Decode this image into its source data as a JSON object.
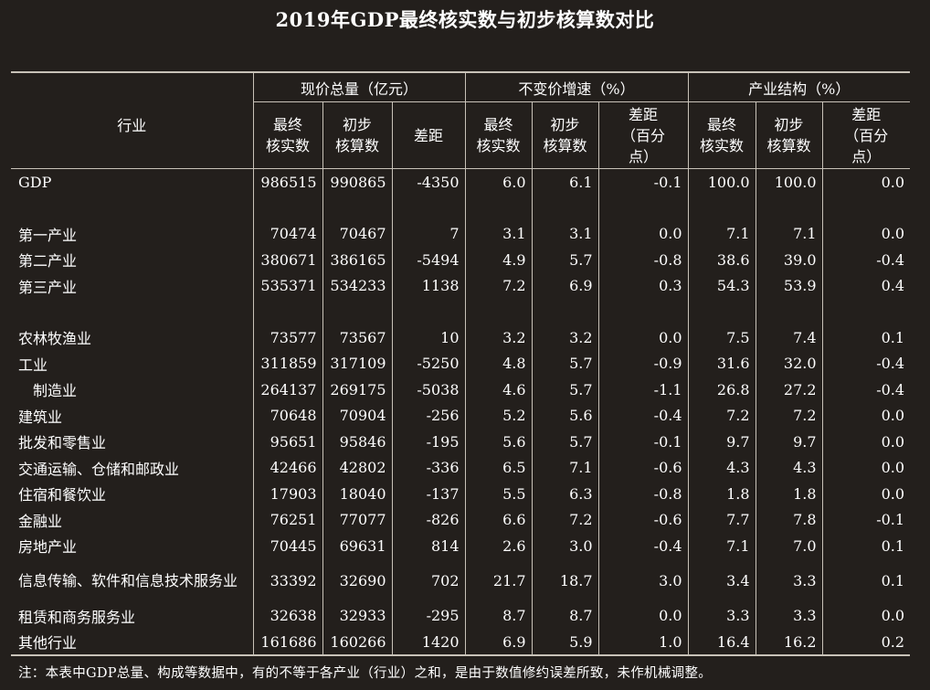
{
  "title": "2019年GDP最终核实数与初步核算数对比",
  "header": {
    "industry": "行业",
    "groups": [
      "现价总量（亿元）",
      "不变价增速（%）",
      "产业结构（%）"
    ],
    "sub": {
      "final": [
        "最终",
        "核实数"
      ],
      "prelim": [
        "初步",
        "核算数"
      ],
      "diff": "差距",
      "diff_pt": [
        "差距",
        "（百分",
        "点）"
      ]
    }
  },
  "rows": [
    {
      "name": "GDP",
      "v": [
        "986515",
        "990865",
        "-4350",
        "6.0",
        "6.1",
        "-0.1",
        "100.0",
        "100.0",
        "0.0"
      ]
    },
    {
      "name": "第一产业",
      "v": [
        "70474",
        "70467",
        "7",
        "3.1",
        "3.1",
        "0.0",
        "7.1",
        "7.1",
        "0.0"
      ]
    },
    {
      "name": "第二产业",
      "v": [
        "380671",
        "386165",
        "-5494",
        "4.9",
        "5.7",
        "-0.8",
        "38.6",
        "39.0",
        "-0.4"
      ]
    },
    {
      "name": "第三产业",
      "v": [
        "535371",
        "534233",
        "1138",
        "7.2",
        "6.9",
        "0.3",
        "54.3",
        "53.9",
        "0.4"
      ]
    },
    {
      "name": "农林牧渔业",
      "v": [
        "73577",
        "73567",
        "10",
        "3.2",
        "3.2",
        "0.0",
        "7.5",
        "7.4",
        "0.1"
      ]
    },
    {
      "name": "工业",
      "v": [
        "311859",
        "317109",
        "-5250",
        "4.8",
        "5.7",
        "-0.9",
        "31.6",
        "32.0",
        "-0.4"
      ]
    },
    {
      "name": "制造业",
      "v": [
        "264137",
        "269175",
        "-5038",
        "4.6",
        "5.7",
        "-1.1",
        "26.8",
        "27.2",
        "-0.4"
      ]
    },
    {
      "name": "建筑业",
      "v": [
        "70648",
        "70904",
        "-256",
        "5.2",
        "5.6",
        "-0.4",
        "7.2",
        "7.2",
        "0.0"
      ]
    },
    {
      "name": "批发和零售业",
      "v": [
        "95651",
        "95846",
        "-195",
        "5.6",
        "5.7",
        "-0.1",
        "9.7",
        "9.7",
        "0.0"
      ]
    },
    {
      "name": "交通运输、仓储和邮政业",
      "v": [
        "42466",
        "42802",
        "-336",
        "6.5",
        "7.1",
        "-0.6",
        "4.3",
        "4.3",
        "0.0"
      ]
    },
    {
      "name": "住宿和餐饮业",
      "v": [
        "17903",
        "18040",
        "-137",
        "5.5",
        "6.3",
        "-0.8",
        "1.8",
        "1.8",
        "0.0"
      ]
    },
    {
      "name": "金融业",
      "v": [
        "76251",
        "77077",
        "-826",
        "6.6",
        "7.2",
        "-0.6",
        "7.7",
        "7.8",
        "-0.1"
      ]
    },
    {
      "name": "房地产业",
      "v": [
        "70445",
        "69631",
        "814",
        "2.6",
        "3.0",
        "-0.4",
        "7.1",
        "7.0",
        "0.1"
      ]
    },
    {
      "name": "信息传输、软件和信息技术服务业",
      "v": [
        "33392",
        "32690",
        "702",
        "21.7",
        "18.7",
        "3.0",
        "3.4",
        "3.3",
        "0.1"
      ]
    },
    {
      "name": "租赁和商务服务业",
      "v": [
        "32638",
        "32933",
        "-295",
        "8.7",
        "8.7",
        "0.0",
        "3.3",
        "3.3",
        "0.0"
      ]
    },
    {
      "name": "其他行业",
      "v": [
        "161686",
        "160266",
        "1420",
        "6.9",
        "5.9",
        "1.0",
        "16.4",
        "16.2",
        "0.2"
      ]
    }
  ],
  "note": "注：本表中GDP总量、构成等数据中，有的不等于各产业（行业）之和，是由于数值修约误差所致，未作机械调整。"
}
